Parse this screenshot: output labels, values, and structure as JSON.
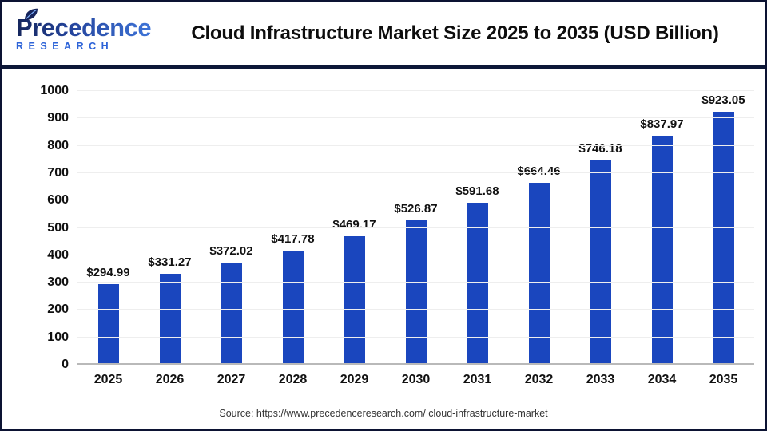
{
  "header": {
    "logo": {
      "name": "Precedence",
      "subtitle": "RESEARCH"
    },
    "title": "Cloud Infrastructure Market Size 2025 to 2035 (USD Billion)"
  },
  "footer": {
    "source": "Source: https://www.precedenceresearch.com/ cloud-infrastructure-market"
  },
  "colors": {
    "bar": "#1a46be",
    "divider": "#0d1838",
    "gridline": "#eeeeee",
    "baseline": "#b9b9b9",
    "logo_navy": "#15265c",
    "logo_blue": "#2e64d8",
    "text": "#111111"
  },
  "chart_data": {
    "type": "bar",
    "title": "Cloud Infrastructure Market Size 2025 to 2035 (USD Billion)",
    "categories": [
      "2025",
      "2026",
      "2027",
      "2028",
      "2029",
      "2030",
      "2031",
      "2032",
      "2033",
      "2034",
      "2035"
    ],
    "values": [
      294.99,
      331.27,
      372.02,
      417.78,
      469.17,
      526.87,
      591.68,
      664.46,
      746.18,
      837.97,
      923.05
    ],
    "value_labels": [
      "$294.99",
      "$331.27",
      "$372.02",
      "$417.78",
      "$469.17",
      "$526.87",
      "$591.68",
      "$664.46",
      "$746.18",
      "$837.97",
      "$923.05"
    ],
    "xlabel": "",
    "ylabel": "",
    "ylim": [
      0,
      1000
    ],
    "ytick_step": 100,
    "ytick_labels": [
      "0",
      "100",
      "200",
      "300",
      "400",
      "500",
      "600",
      "700",
      "800",
      "900",
      "1000"
    ],
    "grid": true,
    "legend": "none",
    "bar_color": "#1a46be",
    "unit": "USD Billion"
  }
}
